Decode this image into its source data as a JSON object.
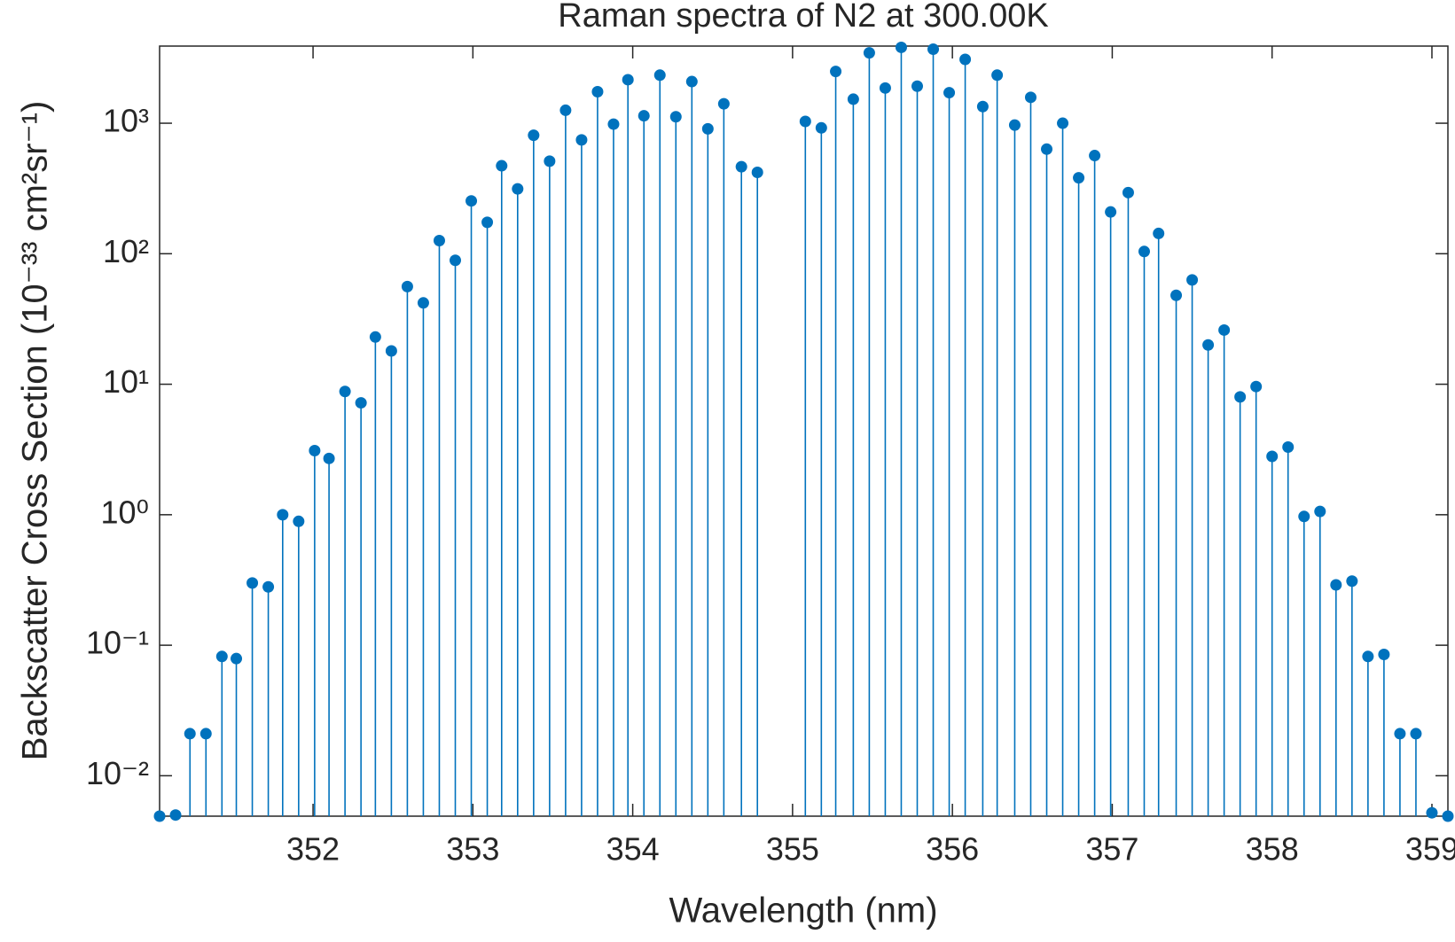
{
  "chart_data": {
    "type": "stem",
    "title": "Raman spectra of N2 at 300.00K",
    "x_label": "Wavelength (nm)",
    "y_label": "Backscatter Cross Section (10⁻³³ cm²sr⁻¹)",
    "log_y": true,
    "color": "#0072BD",
    "xlim": [
      351.04,
      359.1
    ],
    "xticks": [
      352,
      353,
      354,
      355,
      356,
      357,
      358,
      359
    ],
    "ylim": [
      0.0049,
      3900
    ],
    "yticks": [
      {
        "value": 0.01,
        "label": "10⁻²"
      },
      {
        "value": 0.1,
        "label": "10⁻¹"
      },
      {
        "value": 1,
        "label": "10⁰"
      },
      {
        "value": 10,
        "label": "10¹"
      },
      {
        "value": 100,
        "label": "10²"
      },
      {
        "value": 1000,
        "label": "10³"
      }
    ],
    "x": [
      351.04,
      351.14,
      351.23,
      351.33,
      351.43,
      351.52,
      351.62,
      351.72,
      351.81,
      351.91,
      352.01,
      352.1,
      352.2,
      352.3,
      352.39,
      352.49,
      352.59,
      352.69,
      352.79,
      352.89,
      352.99,
      353.09,
      353.18,
      353.28,
      353.38,
      353.48,
      353.58,
      353.68,
      353.78,
      353.88,
      353.97,
      354.07,
      354.17,
      354.27,
      354.37,
      354.47,
      354.57,
      354.68,
      354.78,
      355.08,
      355.18,
      355.27,
      355.38,
      355.48,
      355.58,
      355.68,
      355.78,
      355.88,
      355.98,
      356.08,
      356.19,
      356.28,
      356.39,
      356.49,
      356.59,
      356.69,
      356.79,
      356.89,
      356.99,
      357.1,
      357.2,
      357.29,
      357.4,
      357.5,
      357.6,
      357.7,
      357.8,
      357.9,
      358.0,
      358.1,
      358.2,
      358.3,
      358.4,
      358.5,
      358.6,
      358.7,
      358.8,
      358.9,
      359.0,
      359.1
    ],
    "values": [
      0.0049,
      0.005,
      0.021,
      0.021,
      0.082,
      0.079,
      0.3,
      0.28,
      1.0,
      0.89,
      3.1,
      2.7,
      8.8,
      7.2,
      23,
      18,
      56,
      42,
      126,
      89,
      254,
      174,
      472,
      314,
      809,
      512,
      1257,
      745,
      1744,
      984,
      2155,
      1140,
      2335,
      1121,
      2085,
      906,
      1409,
      464,
      420,
      1033,
      921,
      2492,
      1528,
      3460,
      1861,
      3813,
      1922,
      3690,
      1714,
      3086,
      1342,
      2335,
      968,
      1579,
      633,
      1000,
      382,
      565,
      209,
      294,
      104,
      143,
      48,
      63,
      20,
      26,
      8.0,
      9.6,
      2.8,
      3.3,
      0.97,
      1.06,
      0.29,
      0.31,
      0.082,
      0.085,
      0.021,
      0.021,
      0.0052,
      0.0049
    ]
  }
}
